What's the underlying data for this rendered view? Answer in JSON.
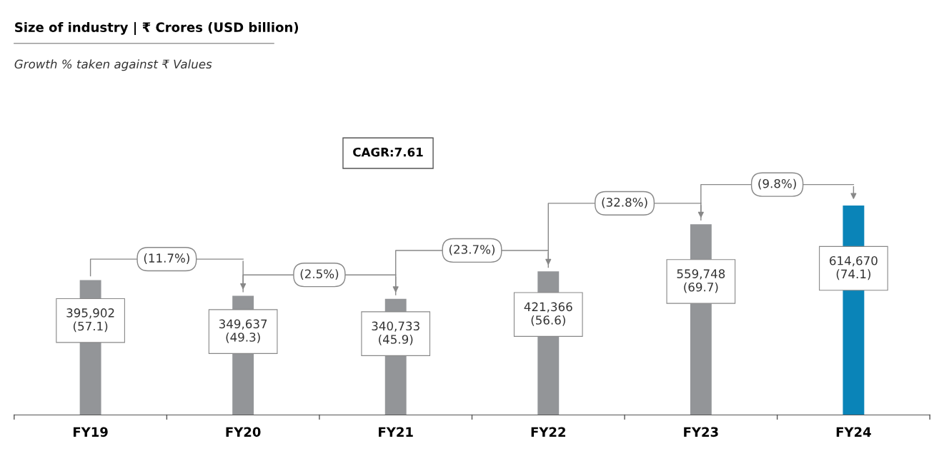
{
  "chart_data": {
    "type": "bar",
    "title": "Size of industry | ₹ Crores (USD billion)",
    "subtitle": "Growth % taken against ₹ Values",
    "categories": [
      "FY19",
      "FY20",
      "FY21",
      "FY22",
      "FY23",
      "FY24"
    ],
    "values": [
      395902,
      349637,
      340733,
      421366,
      559748,
      614670
    ],
    "colors": [
      "#939598",
      "#939598",
      "#939598",
      "#939598",
      "#939598",
      "#0a84b8"
    ],
    "value_labels": [
      "395,902\n(57.1)",
      "349,637\n(49.3)",
      "340,733\n(45.9)",
      "421,366\n(56.6)",
      "559,748\n(69.7)",
      "614,670\n(74.1)"
    ],
    "annotations": [
      "CAGR:7.61",
      "(11.7%)",
      "(2.5%)",
      "(23.7%)",
      "(32.8%)",
      "(9.8%)"
    ],
    "tick_labels": "x",
    "grid": false
  }
}
